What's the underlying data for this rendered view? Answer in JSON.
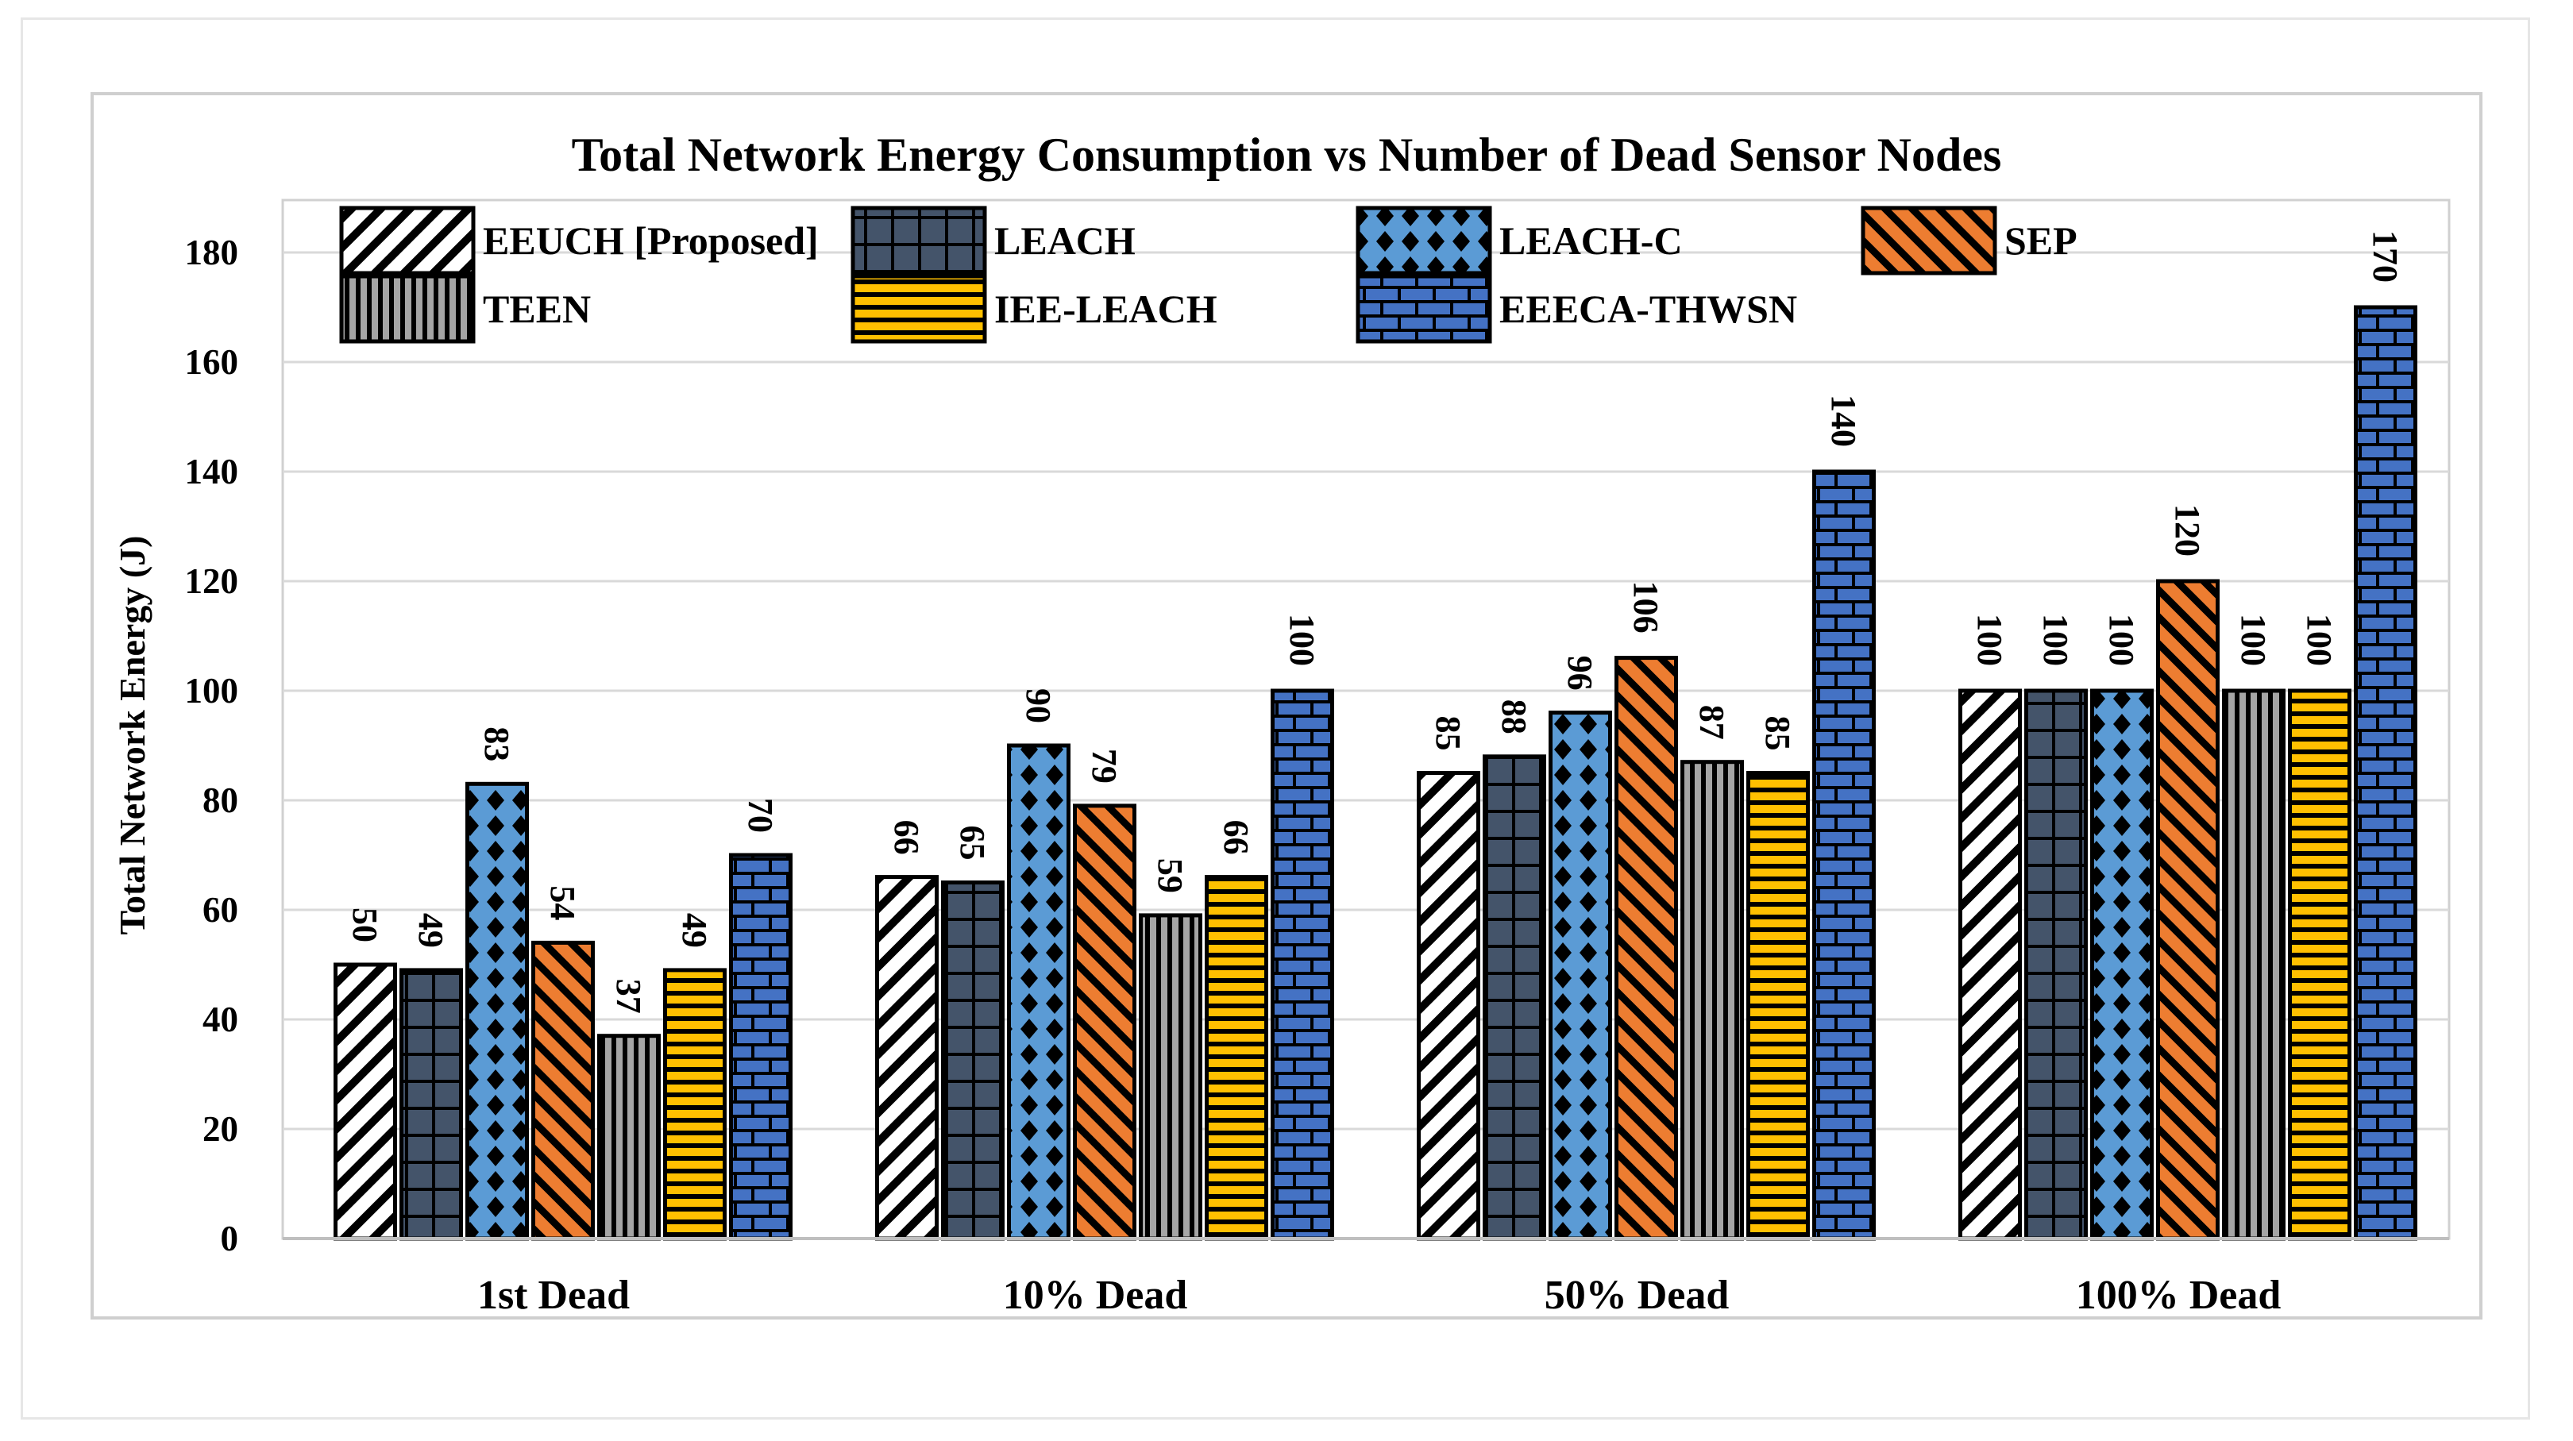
{
  "chart_data": {
    "type": "bar",
    "title": "Total Network Energy Consumption vs Number of Dead Sensor Nodes",
    "xlabel": "",
    "ylabel": "Total Network Energy (J)",
    "ylim": [
      0,
      190
    ],
    "yticks": [
      0,
      20,
      40,
      60,
      80,
      100,
      120,
      140,
      160,
      180
    ],
    "grid": "horizontal",
    "legend_position": "top",
    "categories": [
      "1st Dead",
      "10% Dead",
      "50% Dead",
      "100% Dead"
    ],
    "series": [
      {
        "name": "EEUCH [Proposed]",
        "values": [
          50,
          66,
          85,
          100
        ],
        "color": "#ffffff",
        "pattern": "diagonal-stripes"
      },
      {
        "name": "LEACH",
        "values": [
          49,
          65,
          88,
          100
        ],
        "color": "#44546a",
        "pattern": "grid"
      },
      {
        "name": "LEACH-C",
        "values": [
          83,
          90,
          96,
          100
        ],
        "color": "#5b9bd5",
        "pattern": "diamonds"
      },
      {
        "name": "SEP",
        "values": [
          54,
          79,
          106,
          120
        ],
        "color": "#ed7d31",
        "pattern": "diagonal-stripes"
      },
      {
        "name": "TEEN",
        "values": [
          37,
          59,
          87,
          100
        ],
        "color": "#a5a5a5",
        "pattern": "vertical-stripes"
      },
      {
        "name": "IEE-LEACH",
        "values": [
          49,
          66,
          85,
          100
        ],
        "color": "#ffc000",
        "pattern": "horizontal-stripes"
      },
      {
        "name": "EEECA-THWSN",
        "values": [
          70,
          100,
          140,
          170
        ],
        "color": "#4472c4",
        "pattern": "brick"
      }
    ]
  }
}
